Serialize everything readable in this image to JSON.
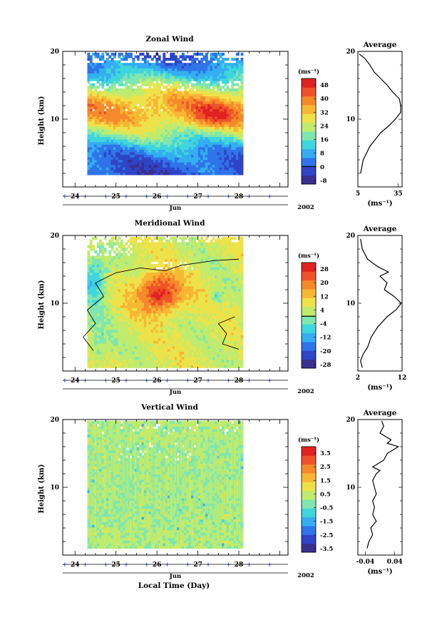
{
  "chart_data": [
    {
      "type": "heatmap",
      "title": "Zonal Wind",
      "ylabel": "Height (km)",
      "xlabel": "Jun",
      "year": "2002",
      "unit": "(ms⁻¹)",
      "ylim": [
        0,
        20
      ],
      "xlim": [
        23.7,
        29.2
      ],
      "y_tick_labels": [
        "10",
        "20"
      ],
      "x_tick_labels": [
        "24",
        "25",
        "26",
        "27",
        "28"
      ],
      "colorbar_labels": [
        "48",
        "40",
        "32",
        "24",
        "16",
        "8",
        "0",
        "-8"
      ],
      "data_extent_days": [
        24.3,
        28.1
      ],
      "data_extent_km": [
        1.8,
        19.8
      ],
      "profile": {
        "title": "Average",
        "xlabel": "(ms⁻¹)",
        "xlim": [
          5,
          38
        ],
        "x_tick_labels": [
          "5",
          "35"
        ],
        "y_tick_labels": [
          "10",
          "20"
        ],
        "height": [
          2,
          4,
          6,
          8,
          9,
          10,
          11,
          12,
          13,
          14,
          15,
          16,
          17,
          18,
          19,
          19.6
        ],
        "value": [
          7,
          9,
          14,
          22,
          28,
          33,
          37,
          37,
          36,
          31,
          27,
          22,
          17,
          14,
          10,
          6
        ]
      }
    },
    {
      "type": "heatmap",
      "title": "Meridional Wind",
      "ylabel": "Height (km)",
      "xlabel": "Jun",
      "year": "2002",
      "unit": "(ms⁻¹)",
      "ylim": [
        0,
        20
      ],
      "xlim": [
        23.7,
        29.2
      ],
      "y_tick_labels": [
        "10",
        "20"
      ],
      "x_tick_labels": [
        "24",
        "25",
        "26",
        "27",
        "28"
      ],
      "colorbar_labels": [
        "28",
        "20",
        "12",
        "4",
        "-4",
        "-12",
        "-20",
        "-28"
      ],
      "data_extent_days": [
        24.3,
        28.1
      ],
      "data_extent_km": [
        0.5,
        19.8
      ],
      "profile": {
        "title": "Average",
        "xlabel": "(ms⁻¹)",
        "xlim": [
          2,
          12
        ],
        "x_tick_labels": [
          "2",
          "12"
        ],
        "y_tick_labels": [
          "10",
          "20"
        ],
        "height": [
          0.5,
          1.5,
          2.5,
          3.5,
          5,
          6.5,
          8,
          9,
          10,
          11,
          12,
          13,
          14,
          14.6,
          15.4,
          16.5,
          18,
          19.5
        ],
        "value": [
          3.0,
          2.6,
          3.2,
          4.2,
          5.0,
          6.5,
          8.6,
          10.6,
          11.8,
          10.2,
          8.0,
          8.6,
          7.0,
          8.9,
          6.5,
          4.2,
          3.0,
          2.6
        ]
      }
    },
    {
      "type": "heatmap",
      "title": "Vertical Wind",
      "ylabel": "Height (km)",
      "xlabel": "Jun",
      "xlabel_bottom": "Local Time (Day)",
      "year": "2002",
      "unit": "(ms⁻¹)",
      "ylim": [
        0,
        20
      ],
      "xlim": [
        23.7,
        29.2
      ],
      "y_tick_labels": [
        "10",
        "20"
      ],
      "x_tick_labels": [
        "24",
        "25",
        "26",
        "27",
        "28"
      ],
      "colorbar_labels": [
        "3.5",
        "2.5",
        "1.5",
        "0.5",
        "-0.5",
        "-1.5",
        "-2.5",
        "-3.5"
      ],
      "data_extent_days": [
        24.3,
        28.1
      ],
      "data_extent_km": [
        1.0,
        19.8
      ],
      "profile": {
        "title": "Average",
        "xlabel": "(ms⁻¹)",
        "xlim": [
          -0.06,
          0.06
        ],
        "x_tick_labels": [
          "-0.04",
          "0.04"
        ],
        "y_tick_labels": [
          "10",
          "20"
        ],
        "height": [
          1,
          2,
          3,
          4,
          5,
          6,
          7,
          8,
          9,
          10,
          11,
          12,
          12.5,
          13,
          14,
          15,
          16,
          16.5,
          17,
          18,
          19,
          19.8
        ],
        "value": [
          -0.035,
          -0.03,
          -0.02,
          -0.025,
          -0.01,
          -0.02,
          -0.015,
          -0.02,
          -0.01,
          -0.015,
          -0.02,
          -0.01,
          0.0,
          -0.02,
          0.01,
          0.02,
          0.05,
          0.02,
          0.03,
          0.0,
          0.01,
          0.005
        ]
      }
    }
  ]
}
